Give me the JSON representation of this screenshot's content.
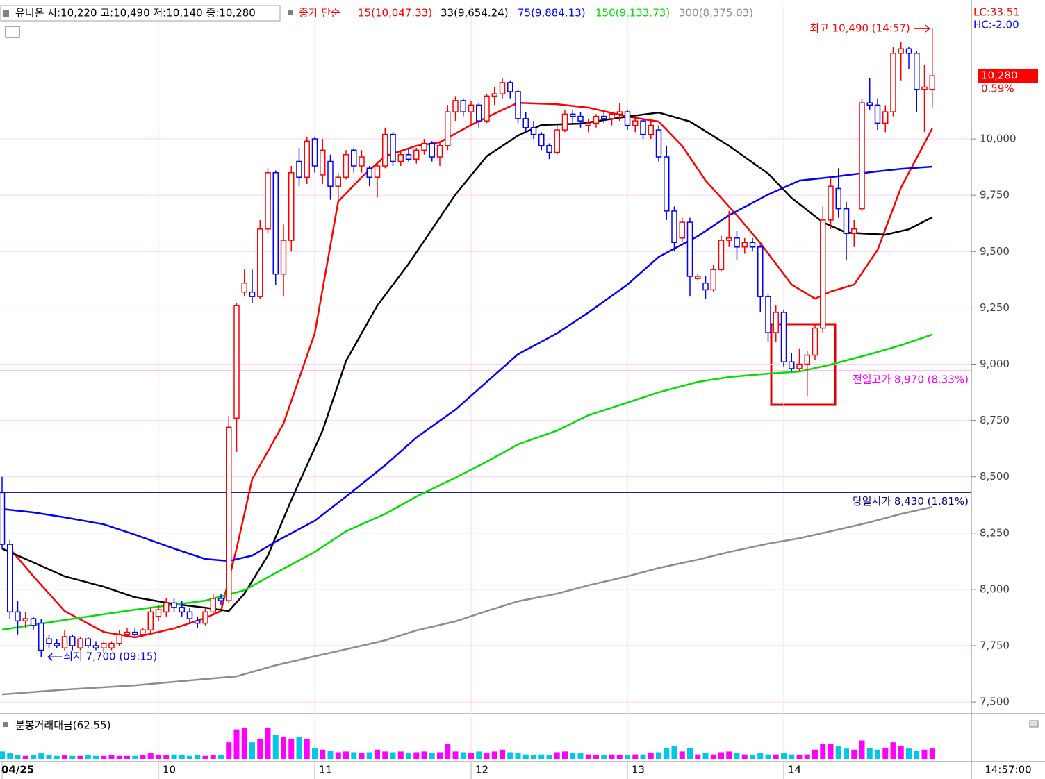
{
  "chart_data": {
    "type": "candlestick",
    "title": "유니온 시:10,220 고:10,490 저:10,140 종:10,280",
    "legend_title": "종가 단순",
    "indicators": [
      {
        "label": "LC:33.51",
        "color": "#ff0000"
      },
      {
        "label": "HC:-2.00",
        "color": "#0000ff"
      }
    ],
    "up_color": "#ff0000",
    "down_color": "#0000ff",
    "grid": true,
    "xlim": [
      -0.8,
      372
    ],
    "xticks": [
      {
        "value": 0,
        "label": "04/25"
      },
      {
        "value": 60,
        "label": "10"
      },
      {
        "value": 120,
        "label": "11"
      },
      {
        "value": 180,
        "label": "12"
      },
      {
        "value": 240,
        "label": "13"
      },
      {
        "value": 300,
        "label": "14"
      }
    ],
    "time_label": "14:57:00",
    "ylim": [
      7448,
      10592
    ],
    "yticks": [
      {
        "value": 7500,
        "label": "7,500"
      },
      {
        "value": 7750,
        "label": "7,750"
      },
      {
        "value": 8000,
        "label": "8,000"
      },
      {
        "value": 8250,
        "label": "8,250"
      },
      {
        "value": 8500,
        "label": "8,500"
      },
      {
        "value": 8750,
        "label": "8,750"
      },
      {
        "value": 9000,
        "label": "9,000"
      },
      {
        "value": 9250,
        "label": "9,250"
      },
      {
        "value": 9500,
        "label": "9,500"
      },
      {
        "value": 9750,
        "label": "9,750"
      },
      {
        "value": 10000,
        "label": "10,000"
      }
    ],
    "last_price": {
      "value": 10280,
      "label": "10,280"
    },
    "change_label": "0.59%",
    "levels": [
      {
        "value": 8970,
        "label": "전일고가 8,970 (8.33%)",
        "color": "#ff00ff"
      },
      {
        "value": 8430,
        "label": "당일시가 8,430 (1.81%)",
        "color": "#000080"
      }
    ],
    "high_mark": {
      "value": 10490,
      "x": 357,
      "label": "최고 10,490 (14:57)"
    },
    "low_mark": {
      "value": 7700,
      "x": 15,
      "label": "최저 7,700 (09:15)"
    },
    "candles": [
      [
        0,
        8430,
        8500,
        8180,
        8200
      ],
      [
        3,
        8200,
        8220,
        7870,
        7900
      ],
      [
        6,
        7900,
        7950,
        7800,
        7860
      ],
      [
        9,
        7860,
        7900,
        7830,
        7870
      ],
      [
        12,
        7870,
        7880,
        7820,
        7840
      ],
      [
        15,
        7850,
        7870,
        7700,
        7730
      ],
      [
        18,
        7780,
        7800,
        7740,
        7760
      ],
      [
        21,
        7760,
        7780,
        7740,
        7750
      ],
      [
        24,
        7740,
        7820,
        7730,
        7790
      ],
      [
        27,
        7790,
        7800,
        7730,
        7750
      ],
      [
        30,
        7740,
        7790,
        7730,
        7780
      ],
      [
        33,
        7780,
        7790,
        7740,
        7750
      ],
      [
        36,
        7750,
        7770,
        7730,
        7740
      ],
      [
        39,
        7740,
        7770,
        7720,
        7760
      ],
      [
        42,
        7740,
        7770,
        7730,
        7760
      ],
      [
        45,
        7760,
        7820,
        7750,
        7800
      ],
      [
        48,
        7800,
        7830,
        7790,
        7810
      ],
      [
        51,
        7810,
        7830,
        7790,
        7800
      ],
      [
        54,
        7800,
        7830,
        7790,
        7820
      ],
      [
        57,
        7820,
        7920,
        7800,
        7900
      ],
      [
        60,
        7880,
        7930,
        7860,
        7910
      ],
      [
        63,
        7900,
        7960,
        7880,
        7940
      ],
      [
        66,
        7940,
        7960,
        7900,
        7920
      ],
      [
        69,
        7920,
        7950,
        7880,
        7900
      ],
      [
        72,
        7900,
        7920,
        7850,
        7870
      ],
      [
        75,
        7860,
        7880,
        7830,
        7850
      ],
      [
        78,
        7850,
        7920,
        7840,
        7900
      ],
      [
        81,
        7900,
        7980,
        7890,
        7960
      ],
      [
        84,
        7960,
        7980,
        7930,
        7950
      ],
      [
        87,
        7950,
        8770,
        7940,
        8720
      ],
      [
        90,
        8760,
        9270,
        8610,
        9260
      ],
      [
        93,
        9320,
        9420,
        9300,
        9360
      ],
      [
        96,
        9320,
        9420,
        9270,
        9300
      ],
      [
        99,
        9300,
        9640,
        9290,
        9600
      ],
      [
        102,
        9600,
        9870,
        9580,
        9850
      ],
      [
        105,
        9850,
        9860,
        9350,
        9400
      ],
      [
        108,
        9400,
        9620,
        9300,
        9550
      ],
      [
        111,
        9550,
        9880,
        9500,
        9850
      ],
      [
        114,
        9900,
        9960,
        9790,
        9830
      ],
      [
        117,
        9830,
        10010,
        9800,
        9990
      ],
      [
        120,
        10000,
        10010,
        9850,
        9880
      ],
      [
        123,
        9840,
        10000,
        9800,
        9950
      ],
      [
        126,
        9900,
        9930,
        9730,
        9790
      ],
      [
        129,
        9790,
        9850,
        9730,
        9830
      ],
      [
        132,
        9830,
        9950,
        9820,
        9930
      ],
      [
        135,
        9950,
        9960,
        9850,
        9880
      ],
      [
        138,
        9880,
        9950,
        9850,
        9920
      ],
      [
        141,
        9870,
        9880,
        9790,
        9830
      ],
      [
        144,
        9830,
        9900,
        9740,
        9880
      ],
      [
        147,
        9880,
        10050,
        9870,
        10020
      ],
      [
        150,
        10020,
        10030,
        9880,
        9900
      ],
      [
        153,
        9900,
        9950,
        9880,
        9930
      ],
      [
        156,
        9930,
        9960,
        9900,
        9910
      ],
      [
        159,
        9910,
        9960,
        9890,
        9950
      ],
      [
        162,
        9950,
        10000,
        9930,
        9980
      ],
      [
        165,
        9980,
        9990,
        9900,
        9920
      ],
      [
        168,
        9920,
        9990,
        9880,
        9970
      ],
      [
        171,
        9970,
        10150,
        9950,
        10120
      ],
      [
        174,
        10120,
        10190,
        10080,
        10170
      ],
      [
        177,
        10170,
        10180,
        10100,
        10120
      ],
      [
        180,
        10120,
        10170,
        10060,
        10150
      ],
      [
        183,
        10150,
        10160,
        10050,
        10080
      ],
      [
        186,
        10080,
        10200,
        10070,
        10190
      ],
      [
        189,
        10190,
        10230,
        10150,
        10200
      ],
      [
        192,
        10200,
        10270,
        10180,
        10250
      ],
      [
        195,
        10250,
        10260,
        10180,
        10210
      ],
      [
        198,
        10210,
        10220,
        10070,
        10090
      ],
      [
        201,
        10090,
        10120,
        10030,
        10050
      ],
      [
        204,
        10050,
        10080,
        10000,
        10020
      ],
      [
        207,
        10020,
        10030,
        9950,
        9970
      ],
      [
        210,
        9970,
        9980,
        9910,
        9940
      ],
      [
        213,
        9940,
        10060,
        9930,
        10040
      ],
      [
        216,
        10040,
        10130,
        10030,
        10110
      ],
      [
        219,
        10110,
        10130,
        10070,
        10100
      ],
      [
        222,
        10100,
        10120,
        10050,
        10080
      ],
      [
        225,
        10060,
        10090,
        10030,
        10070
      ],
      [
        228,
        10070,
        10110,
        10050,
        10100
      ],
      [
        231,
        10100,
        10120,
        10070,
        10090
      ],
      [
        234,
        10090,
        10120,
        10060,
        10110
      ],
      [
        237,
        10110,
        10160,
        10080,
        10120
      ],
      [
        240,
        10120,
        10130,
        10040,
        10060
      ],
      [
        243,
        10060,
        10100,
        10030,
        10080
      ],
      [
        246,
        10080,
        10090,
        10000,
        10020
      ],
      [
        249,
        10020,
        10080,
        10000,
        10060
      ],
      [
        252,
        10040,
        10060,
        9900,
        9920
      ],
      [
        255,
        9920,
        9970,
        9640,
        9680
      ],
      [
        258,
        9680,
        9700,
        9500,
        9540
      ],
      [
        261,
        9560,
        9650,
        9540,
        9630
      ],
      [
        264,
        9630,
        9650,
        9300,
        9390
      ],
      [
        267,
        9380,
        9400,
        9370,
        9390
      ],
      [
        270,
        9360,
        9390,
        9290,
        9330
      ],
      [
        273,
        9330,
        9440,
        9320,
        9420
      ],
      [
        276,
        9420,
        9570,
        9410,
        9550
      ],
      [
        279,
        9550,
        9680,
        9520,
        9560
      ],
      [
        282,
        9560,
        9590,
        9460,
        9520
      ],
      [
        285,
        9520,
        9560,
        9490,
        9540
      ],
      [
        288,
        9540,
        9560,
        9500,
        9520
      ],
      [
        291,
        9520,
        9530,
        9230,
        9300
      ],
      [
        294,
        9300,
        9310,
        9100,
        9140
      ],
      [
        297,
        9140,
        9260,
        9100,
        9230
      ],
      [
        300,
        9230,
        9240,
        8990,
        9010
      ],
      [
        303,
        9010,
        9050,
        8970,
        8980
      ],
      [
        306,
        8980,
        9070,
        8970,
        9000
      ],
      [
        309,
        9000,
        9060,
        8860,
        9040
      ],
      [
        312,
        9040,
        9180,
        9020,
        9160
      ],
      [
        315,
        9160,
        9700,
        9140,
        9640
      ],
      [
        318,
        9640,
        9830,
        9600,
        9790
      ],
      [
        321,
        9780,
        9870,
        9650,
        9690
      ],
      [
        324,
        9690,
        9720,
        9460,
        9580
      ],
      [
        327,
        9580,
        9640,
        9520,
        9600
      ],
      [
        330,
        9690,
        10180,
        9680,
        10160
      ],
      [
        333,
        10160,
        10270,
        10130,
        10150
      ],
      [
        336,
        10150,
        10180,
        10040,
        10070
      ],
      [
        339,
        10070,
        10150,
        10030,
        10120
      ],
      [
        342,
        10120,
        10410,
        10100,
        10380
      ],
      [
        345,
        10380,
        10430,
        10260,
        10400
      ],
      [
        348,
        10400,
        10410,
        10310,
        10380
      ],
      [
        351,
        10380,
        10390,
        10120,
        10220
      ],
      [
        354,
        10220,
        10330,
        10030,
        10230
      ],
      [
        357,
        10220,
        10490,
        10140,
        10280
      ]
    ],
    "series": [
      {
        "name": "15(10,047.33)",
        "color": "#ff0000",
        "x": [
          3,
          12,
          24,
          39,
          51,
          66,
          78,
          84,
          90,
          96,
          108,
          120,
          129,
          138,
          147,
          159,
          168,
          180,
          192,
          198,
          213,
          225,
          240,
          252,
          261,
          270,
          282,
          291,
          303,
          312,
          318,
          327,
          336,
          345,
          357
        ],
        "values": [
          8181,
          8058,
          7904,
          7811,
          7787,
          7827,
          7873,
          7904,
          8181,
          8490,
          8736,
          9137,
          9722,
          9830,
          9923,
          9969,
          9985,
          10062,
          10129,
          10160,
          10154,
          10139,
          10099,
          10077,
          9969,
          9815,
          9661,
          9538,
          9353,
          9291,
          9322,
          9353,
          9507,
          9784,
          10046
        ]
      },
      {
        "name": "33(9,654.24)",
        "color": "#000000",
        "x": [
          0,
          12,
          24,
          39,
          51,
          66,
          78,
          87,
          93,
          102,
          111,
          123,
          132,
          144,
          156,
          165,
          174,
          186,
          198,
          207,
          222,
          240,
          252,
          264,
          279,
          294,
          303,
          315,
          324,
          339,
          348,
          357
        ],
        "values": [
          8181,
          8120,
          8058,
          8012,
          7965,
          7935,
          7919,
          7904,
          7981,
          8150,
          8397,
          8705,
          9014,
          9260,
          9445,
          9599,
          9753,
          9923,
          10015,
          10062,
          10068,
          10099,
          10117,
          10077,
          9969,
          9846,
          9738,
          9630,
          9584,
          9575,
          9599,
          9652
        ]
      },
      {
        "name": "75(9,884.13)",
        "color": "#0000ff",
        "x": [
          0,
          12,
          24,
          39,
          51,
          66,
          78,
          87,
          96,
          105,
          120,
          132,
          147,
          159,
          174,
          186,
          198,
          213,
          225,
          240,
          252,
          267,
          279,
          294,
          306,
          318,
          333,
          345,
          357
        ],
        "values": [
          8357,
          8342,
          8320,
          8289,
          8243,
          8181,
          8135,
          8126,
          8150,
          8212,
          8305,
          8412,
          8551,
          8674,
          8798,
          8921,
          9044,
          9137,
          9229,
          9353,
          9476,
          9568,
          9661,
          9753,
          9815,
          9830,
          9852,
          9867,
          9877
        ]
      },
      {
        "name": "150(9,133.73)",
        "color": "#00e000",
        "x": [
          0,
          24,
          51,
          78,
          93,
          105,
          120,
          132,
          147,
          159,
          174,
          186,
          198,
          213,
          225,
          240,
          252,
          267,
          279,
          294,
          306,
          318,
          333,
          345,
          357
        ],
        "values": [
          7821,
          7864,
          7910,
          7950,
          7996,
          8073,
          8166,
          8258,
          8335,
          8412,
          8496,
          8567,
          8644,
          8705,
          8773,
          8829,
          8875,
          8921,
          8943,
          8958,
          8967,
          8998,
          9044,
          9084,
          9131
        ]
      },
      {
        "name": "300(8,375.03)",
        "color": "#8c8c8c",
        "x": [
          0,
          24,
          51,
          78,
          90,
          105,
          120,
          132,
          147,
          159,
          174,
          186,
          198,
          213,
          225,
          240,
          252,
          267,
          279,
          294,
          306,
          318,
          333,
          345,
          357
        ],
        "values": [
          7534,
          7555,
          7574,
          7602,
          7614,
          7663,
          7703,
          7734,
          7774,
          7818,
          7858,
          7904,
          7947,
          7981,
          8018,
          8058,
          8095,
          8132,
          8166,
          8203,
          8227,
          8258,
          8298,
          8335,
          8366
        ]
      }
    ],
    "volume": {
      "title": "분봉거래대금(62.55)",
      "ylim": [
        0,
        100
      ],
      "up_color": "#ff00ff",
      "down_color": "#00c8e8",
      "values": [
        20,
        15,
        10,
        8,
        10,
        15,
        10,
        8,
        10,
        8,
        8,
        10,
        8,
        8,
        10,
        8,
        8,
        8,
        10,
        15,
        10,
        10,
        12,
        10,
        8,
        10,
        8,
        10,
        10,
        45,
        80,
        85,
        45,
        55,
        85,
        65,
        60,
        55,
        60,
        55,
        30,
        25,
        22,
        18,
        20,
        18,
        15,
        18,
        25,
        20,
        18,
        20,
        15,
        18,
        20,
        15,
        18,
        40,
        20,
        18,
        15,
        20,
        15,
        20,
        25,
        18,
        15,
        12,
        10,
        12,
        10,
        18,
        20,
        15,
        15,
        12,
        10,
        10,
        12,
        10,
        10,
        12,
        12,
        15,
        18,
        30,
        35,
        20,
        30,
        12,
        15,
        12,
        18,
        20,
        15,
        12,
        10,
        15,
        12,
        12,
        15,
        12,
        10,
        12,
        25,
        40,
        40,
        35,
        28,
        25,
        50,
        30,
        25,
        30,
        45,
        35,
        28,
        22,
        25,
        28
      ]
    }
  }
}
